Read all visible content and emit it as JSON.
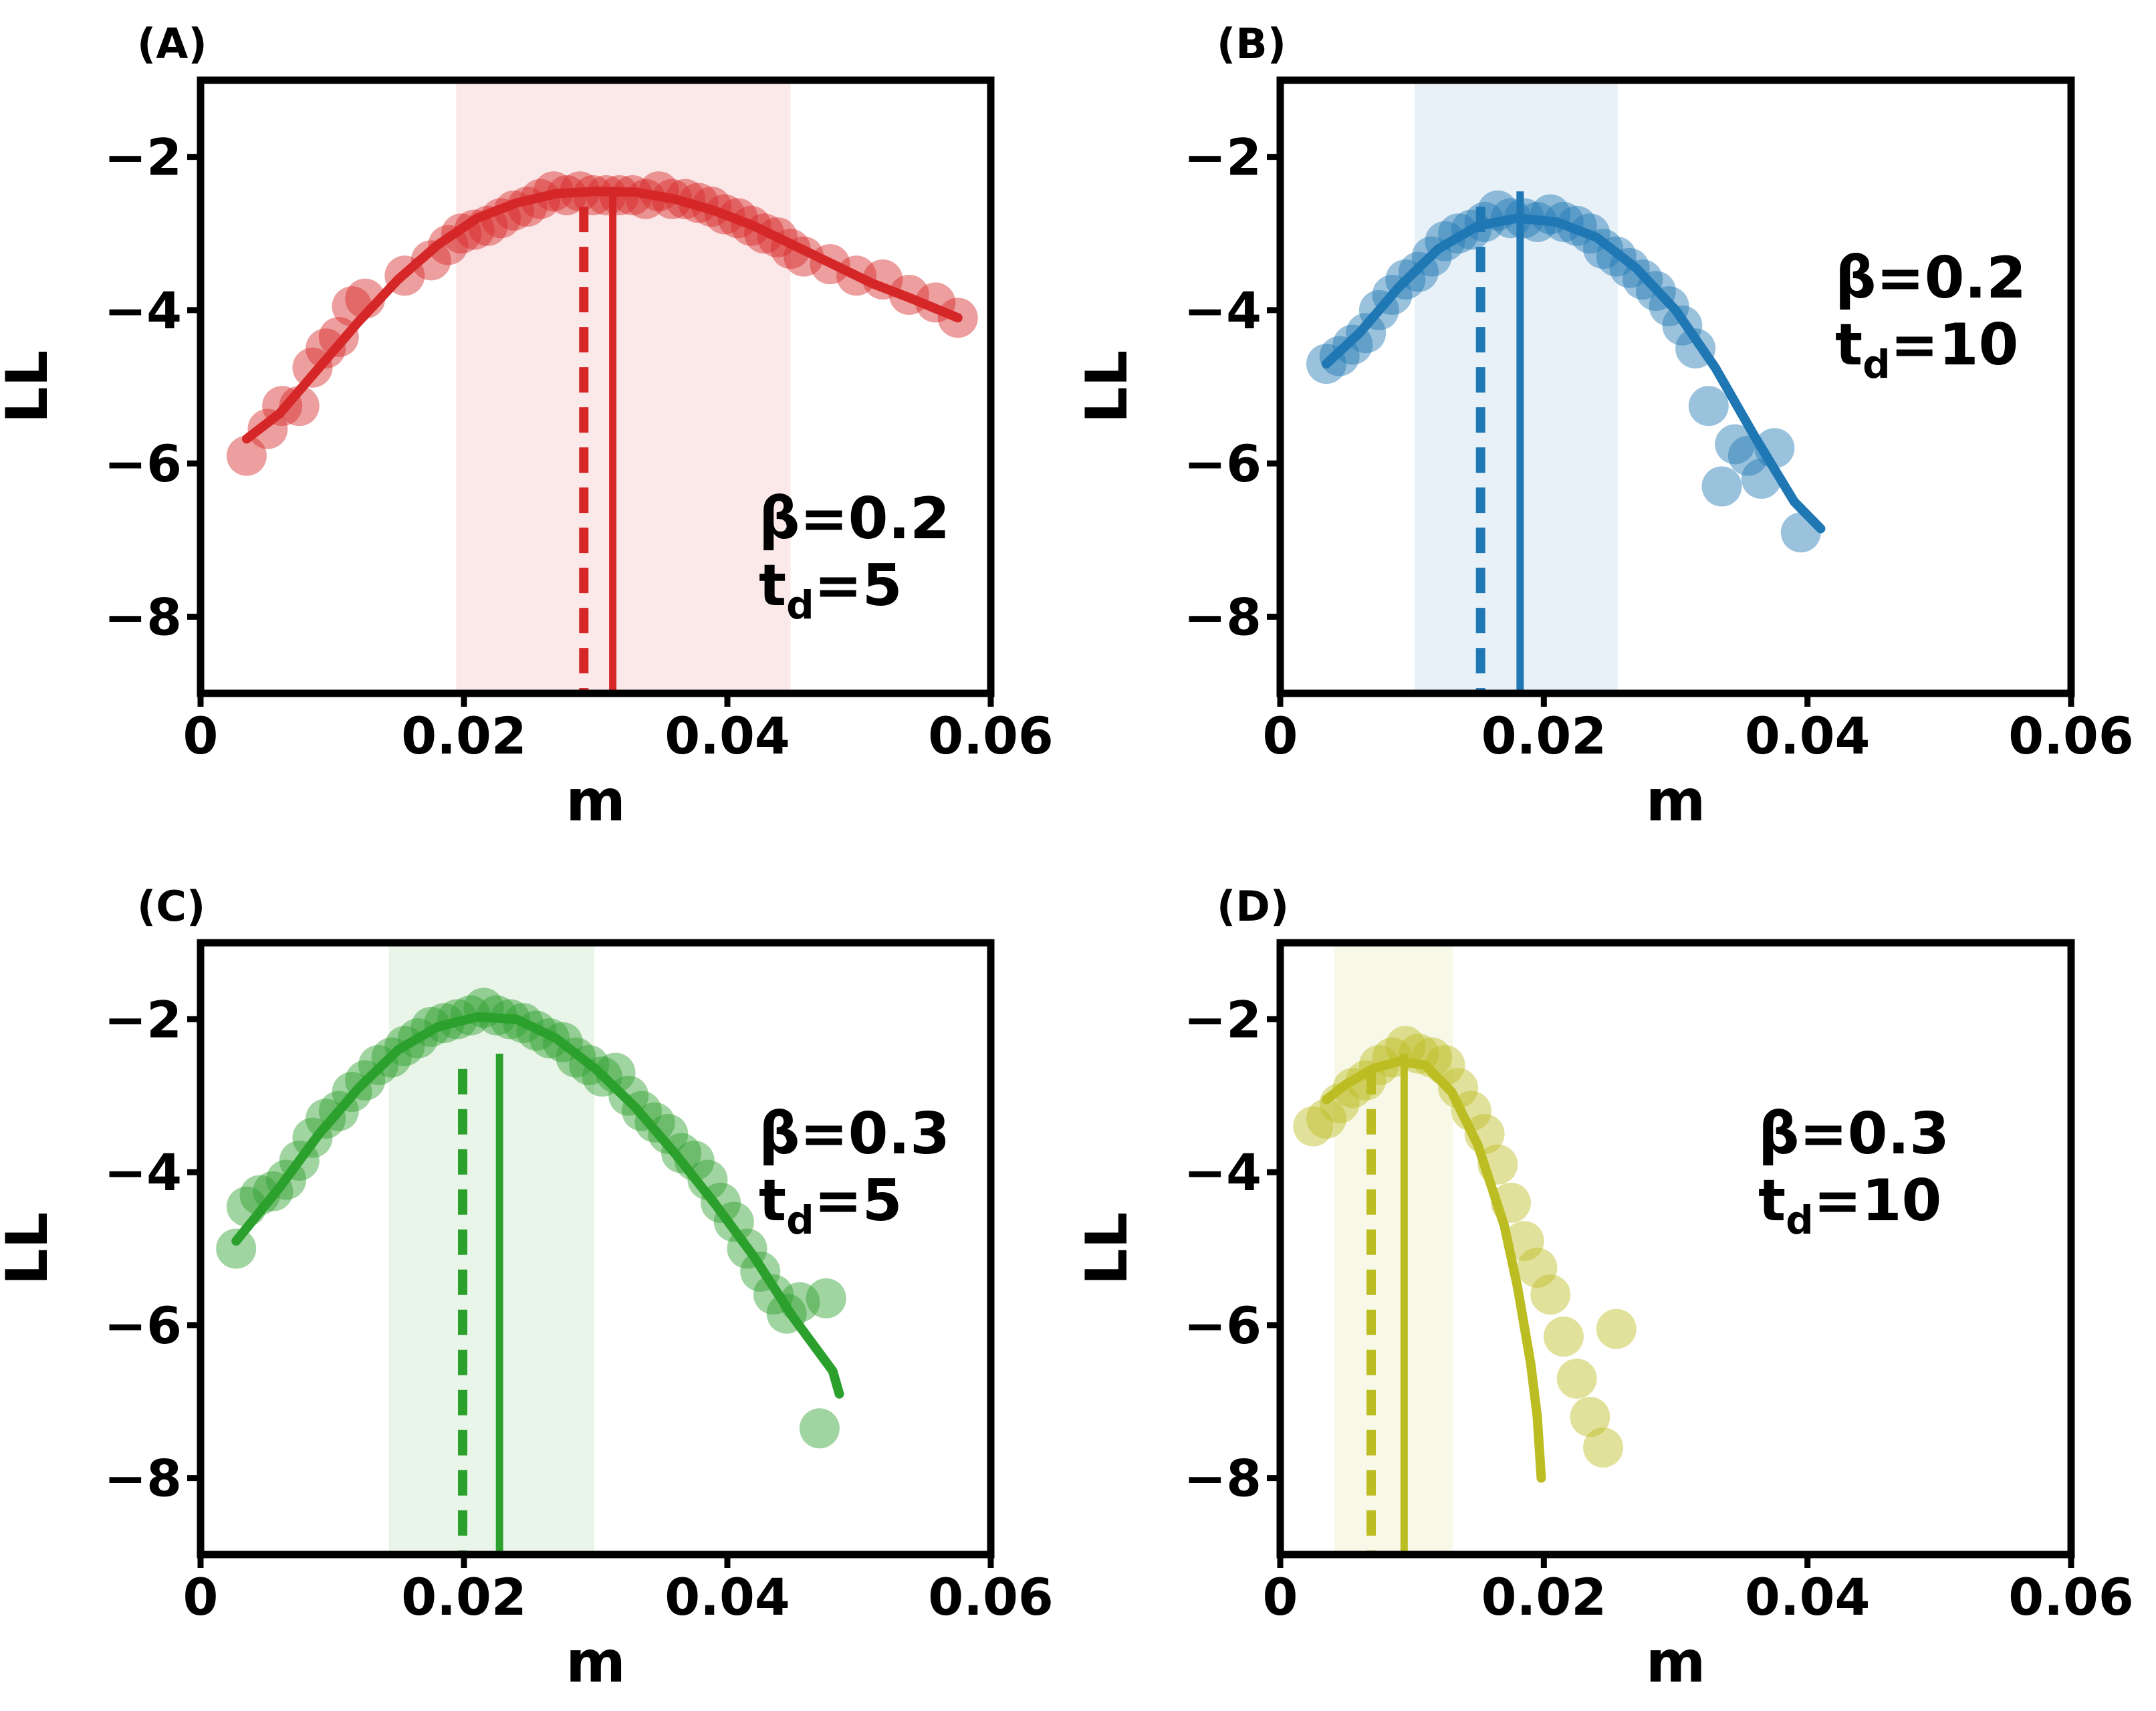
{
  "chart_data": [
    {
      "type": "scatter",
      "panel_label": "(A)",
      "color": "#d62728",
      "annotation": {
        "beta": "β=0.2",
        "td_base": "t",
        "td_sub": "d",
        "td_value": "=5"
      },
      "xlabel": "m",
      "ylabel": "LL",
      "xlim": [
        0,
        0.06
      ],
      "ylim": [
        -9,
        -1
      ],
      "xticks": [
        0,
        0.02,
        0.04,
        0.06
      ],
      "xtick_labels": [
        "0",
        "0.02",
        "0.04",
        "0.06"
      ],
      "yticks": [
        -8,
        -6,
        -4,
        -2
      ],
      "ytick_labels": [
        "−8",
        "−6",
        "−4",
        "−2"
      ],
      "shade_range": [
        0.0194,
        0.0448
      ],
      "dashed_x": 0.0291,
      "solid_x": 0.0313,
      "points": [
        [
          0.0035,
          -5.9
        ],
        [
          0.0051,
          -5.55
        ],
        [
          0.0062,
          -5.25
        ],
        [
          0.0075,
          -5.25
        ],
        [
          0.0085,
          -4.75
        ],
        [
          0.0095,
          -4.5
        ],
        [
          0.0105,
          -4.35
        ],
        [
          0.0115,
          -3.95
        ],
        [
          0.0125,
          -3.85
        ],
        [
          0.0155,
          -3.55
        ],
        [
          0.0175,
          -3.35
        ],
        [
          0.0188,
          -3.15
        ],
        [
          0.0198,
          -3.0
        ],
        [
          0.0208,
          -2.95
        ],
        [
          0.0218,
          -2.9
        ],
        [
          0.0228,
          -2.8
        ],
        [
          0.0238,
          -2.7
        ],
        [
          0.0248,
          -2.65
        ],
        [
          0.0258,
          -2.55
        ],
        [
          0.0268,
          -2.45
        ],
        [
          0.0278,
          -2.5
        ],
        [
          0.0288,
          -2.45
        ],
        [
          0.0298,
          -2.5
        ],
        [
          0.0308,
          -2.5
        ],
        [
          0.0318,
          -2.5
        ],
        [
          0.0328,
          -2.5
        ],
        [
          0.0338,
          -2.55
        ],
        [
          0.0348,
          -2.45
        ],
        [
          0.0358,
          -2.55
        ],
        [
          0.0368,
          -2.55
        ],
        [
          0.0378,
          -2.6
        ],
        [
          0.0388,
          -2.65
        ],
        [
          0.0398,
          -2.75
        ],
        [
          0.0408,
          -2.8
        ],
        [
          0.0418,
          -2.9
        ],
        [
          0.0428,
          -3.0
        ],
        [
          0.0438,
          -3.05
        ],
        [
          0.0448,
          -3.2
        ],
        [
          0.0458,
          -3.3
        ],
        [
          0.0478,
          -3.4
        ],
        [
          0.0498,
          -3.55
        ],
        [
          0.0518,
          -3.6
        ],
        [
          0.0538,
          -3.8
        ],
        [
          0.0558,
          -3.9
        ],
        [
          0.0575,
          -4.1
        ]
      ],
      "fit": [
        [
          0.0035,
          -5.68
        ],
        [
          0.006,
          -5.35
        ],
        [
          0.009,
          -4.75
        ],
        [
          0.012,
          -4.15
        ],
        [
          0.015,
          -3.6
        ],
        [
          0.018,
          -3.15
        ],
        [
          0.021,
          -2.8
        ],
        [
          0.024,
          -2.6
        ],
        [
          0.027,
          -2.48
        ],
        [
          0.03,
          -2.45
        ],
        [
          0.033,
          -2.46
        ],
        [
          0.036,
          -2.55
        ],
        [
          0.039,
          -2.7
        ],
        [
          0.042,
          -2.9
        ],
        [
          0.045,
          -3.15
        ],
        [
          0.048,
          -3.4
        ],
        [
          0.051,
          -3.65
        ],
        [
          0.054,
          -3.85
        ],
        [
          0.0575,
          -4.1
        ]
      ]
    },
    {
      "type": "scatter",
      "panel_label": "(B)",
      "color": "#1f77b4",
      "annotation": {
        "beta": "β=0.2",
        "td_base": "t",
        "td_sub": "d",
        "td_value": "=10"
      },
      "xlabel": "m",
      "ylabel": "LL",
      "xlim": [
        0,
        0.06
      ],
      "ylim": [
        -9,
        -1
      ],
      "xticks": [
        0,
        0.02,
        0.04,
        0.06
      ],
      "xtick_labels": [
        "0",
        "0.02",
        "0.04",
        "0.06"
      ],
      "yticks": [
        -8,
        -6,
        -4,
        -2
      ],
      "ytick_labels": [
        "−8",
        "−6",
        "−4",
        "−2"
      ],
      "shade_range": [
        0.0102,
        0.0256
      ],
      "dashed_x": 0.0152,
      "solid_x": 0.0182,
      "points": [
        [
          0.0035,
          -4.7
        ],
        [
          0.0045,
          -4.6
        ],
        [
          0.0055,
          -4.45
        ],
        [
          0.0065,
          -4.3
        ],
        [
          0.0075,
          -4.0
        ],
        [
          0.0085,
          -3.8
        ],
        [
          0.0095,
          -3.6
        ],
        [
          0.0105,
          -3.5
        ],
        [
          0.0115,
          -3.3
        ],
        [
          0.0125,
          -3.1
        ],
        [
          0.0135,
          -3.0
        ],
        [
          0.0145,
          -2.95
        ],
        [
          0.0155,
          -2.85
        ],
        [
          0.0165,
          -2.7
        ],
        [
          0.0175,
          -2.8
        ],
        [
          0.0185,
          -2.8
        ],
        [
          0.0195,
          -2.85
        ],
        [
          0.0205,
          -2.75
        ],
        [
          0.0215,
          -2.85
        ],
        [
          0.0225,
          -2.9
        ],
        [
          0.0235,
          -3.0
        ],
        [
          0.0245,
          -3.2
        ],
        [
          0.0255,
          -3.3
        ],
        [
          0.0265,
          -3.45
        ],
        [
          0.0275,
          -3.6
        ],
        [
          0.0285,
          -3.75
        ],
        [
          0.0295,
          -3.95
        ],
        [
          0.0305,
          -4.2
        ],
        [
          0.0315,
          -4.5
        ],
        [
          0.0325,
          -5.25
        ],
        [
          0.0345,
          -5.75
        ],
        [
          0.0335,
          -6.3
        ],
        [
          0.0355,
          -5.9
        ],
        [
          0.0365,
          -6.2
        ],
        [
          0.0375,
          -5.8
        ],
        [
          0.0395,
          -6.9
        ]
      ],
      "fit": [
        [
          0.0035,
          -4.7
        ],
        [
          0.006,
          -4.3
        ],
        [
          0.009,
          -3.7
        ],
        [
          0.012,
          -3.2
        ],
        [
          0.015,
          -2.9
        ],
        [
          0.018,
          -2.8
        ],
        [
          0.021,
          -2.85
        ],
        [
          0.024,
          -3.05
        ],
        [
          0.027,
          -3.45
        ],
        [
          0.03,
          -4.0
        ],
        [
          0.033,
          -4.75
        ],
        [
          0.036,
          -5.65
        ],
        [
          0.039,
          -6.5
        ],
        [
          0.041,
          -6.85
        ]
      ]
    },
    {
      "type": "scatter",
      "panel_label": "(C)",
      "color": "#2ca02c",
      "annotation": {
        "beta": "β=0.3",
        "td_base": "t",
        "td_sub": "d",
        "td_value": "=5"
      },
      "xlabel": "m",
      "ylabel": "LL",
      "xlim": [
        0,
        0.06
      ],
      "ylim": [
        -9,
        -1
      ],
      "xticks": [
        0,
        0.02,
        0.04,
        0.06
      ],
      "xtick_labels": [
        "0",
        "0.02",
        "0.04",
        "0.06"
      ],
      "yticks": [
        -8,
        -6,
        -4,
        -2
      ],
      "ytick_labels": [
        "−8",
        "−6",
        "−4",
        "−2"
      ],
      "shade_range": [
        0.0143,
        0.0299
      ],
      "dashed_x": 0.0199,
      "solid_x": 0.0227,
      "points": [
        [
          0.0027,
          -5.0
        ],
        [
          0.0035,
          -4.45
        ],
        [
          0.0045,
          -4.3
        ],
        [
          0.0055,
          -4.25
        ],
        [
          0.0065,
          -4.1
        ],
        [
          0.0075,
          -3.85
        ],
        [
          0.0085,
          -3.55
        ],
        [
          0.0095,
          -3.3
        ],
        [
          0.0105,
          -3.2
        ],
        [
          0.0115,
          -2.95
        ],
        [
          0.0125,
          -2.8
        ],
        [
          0.0135,
          -2.6
        ],
        [
          0.0145,
          -2.5
        ],
        [
          0.0155,
          -2.35
        ],
        [
          0.0165,
          -2.25
        ],
        [
          0.0175,
          -2.1
        ],
        [
          0.0185,
          -2.05
        ],
        [
          0.0195,
          -2.0
        ],
        [
          0.0205,
          -1.95
        ],
        [
          0.0215,
          -1.85
        ],
        [
          0.0225,
          -1.95
        ],
        [
          0.0235,
          -2.0
        ],
        [
          0.0245,
          -2.05
        ],
        [
          0.0255,
          -2.15
        ],
        [
          0.0265,
          -2.25
        ],
        [
          0.0275,
          -2.3
        ],
        [
          0.0285,
          -2.5
        ],
        [
          0.0295,
          -2.6
        ],
        [
          0.0305,
          -2.75
        ],
        [
          0.0315,
          -2.7
        ],
        [
          0.0325,
          -3.0
        ],
        [
          0.0335,
          -3.2
        ],
        [
          0.0345,
          -3.35
        ],
        [
          0.0355,
          -3.5
        ],
        [
          0.0365,
          -3.75
        ],
        [
          0.0375,
          -3.85
        ],
        [
          0.0385,
          -4.1
        ],
        [
          0.0395,
          -4.4
        ],
        [
          0.0405,
          -4.65
        ],
        [
          0.0415,
          -5.0
        ],
        [
          0.0425,
          -5.3
        ],
        [
          0.0435,
          -5.6
        ],
        [
          0.0445,
          -5.85
        ],
        [
          0.0455,
          -5.7
        ],
        [
          0.047,
          -7.35
        ],
        [
          0.0475,
          -5.65
        ]
      ],
      "fit": [
        [
          0.0027,
          -4.9
        ],
        [
          0.006,
          -4.2
        ],
        [
          0.009,
          -3.5
        ],
        [
          0.012,
          -2.9
        ],
        [
          0.015,
          -2.4
        ],
        [
          0.018,
          -2.1
        ],
        [
          0.021,
          -1.97
        ],
        [
          0.024,
          -2.0
        ],
        [
          0.027,
          -2.25
        ],
        [
          0.03,
          -2.65
        ],
        [
          0.033,
          -3.15
        ],
        [
          0.036,
          -3.75
        ],
        [
          0.039,
          -4.4
        ],
        [
          0.042,
          -5.1
        ],
        [
          0.045,
          -5.9
        ],
        [
          0.048,
          -6.6
        ],
        [
          0.0485,
          -6.9
        ]
      ]
    },
    {
      "type": "scatter",
      "panel_label": "(D)",
      "color": "#bcbd22",
      "annotation": {
        "beta": "β=0.3",
        "td_base": "t",
        "td_sub": "d",
        "td_value": "=10"
      },
      "xlabel": "m",
      "ylabel": "LL",
      "xlim": [
        0,
        0.06
      ],
      "ylim": [
        -9,
        -1
      ],
      "xticks": [
        0,
        0.02,
        0.04,
        0.06
      ],
      "xtick_labels": [
        "0",
        "0.02",
        "0.04",
        "0.06"
      ],
      "yticks": [
        -8,
        -6,
        -4,
        -2
      ],
      "ytick_labels": [
        "−8",
        "−6",
        "−4",
        "−2"
      ],
      "shade_range": [
        0.0041,
        0.0131
      ],
      "dashed_x": 0.0069,
      "solid_x": 0.0094,
      "points": [
        [
          0.0025,
          -3.4
        ],
        [
          0.0035,
          -3.3
        ],
        [
          0.0045,
          -3.1
        ],
        [
          0.0055,
          -2.9
        ],
        [
          0.0065,
          -2.8
        ],
        [
          0.0075,
          -2.6
        ],
        [
          0.0085,
          -2.5
        ],
        [
          0.0095,
          -2.35
        ],
        [
          0.0105,
          -2.45
        ],
        [
          0.0115,
          -2.5
        ],
        [
          0.0125,
          -2.6
        ],
        [
          0.0135,
          -2.9
        ],
        [
          0.0145,
          -3.2
        ],
        [
          0.0155,
          -3.5
        ],
        [
          0.0165,
          -3.9
        ],
        [
          0.0175,
          -4.4
        ],
        [
          0.0185,
          -4.9
        ],
        [
          0.0195,
          -5.25
        ],
        [
          0.0205,
          -5.6
        ],
        [
          0.0215,
          -6.15
        ],
        [
          0.0225,
          -6.7
        ],
        [
          0.0235,
          -7.2
        ],
        [
          0.0245,
          -7.6
        ],
        [
          0.0255,
          -6.05
        ]
      ],
      "fit": [
        [
          0.0035,
          -3.05
        ],
        [
          0.005,
          -2.85
        ],
        [
          0.007,
          -2.65
        ],
        [
          0.009,
          -2.55
        ],
        [
          0.011,
          -2.6
        ],
        [
          0.013,
          -2.95
        ],
        [
          0.015,
          -3.65
        ],
        [
          0.017,
          -4.7
        ],
        [
          0.018,
          -5.5
        ],
        [
          0.019,
          -6.5
        ],
        [
          0.0195,
          -7.2
        ],
        [
          0.0198,
          -8.0
        ]
      ]
    }
  ]
}
